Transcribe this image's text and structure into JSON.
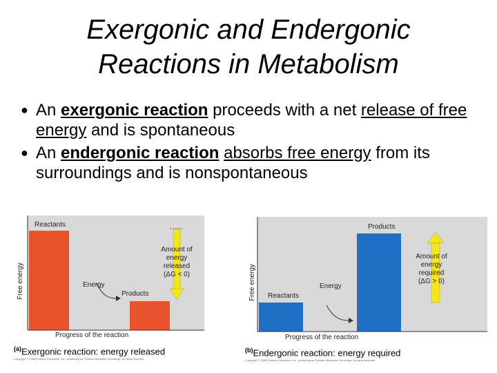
{
  "title": {
    "line1": "Exergonic and Endergonic",
    "line2": "Reactions in Metabolism"
  },
  "bullets": [
    {
      "pre": "An ",
      "term": "exergonic reaction",
      "mid": " proceeds with a net ",
      "rest": "release of free energy",
      "post": " and is spontaneous"
    },
    {
      "pre": "An ",
      "term": "endergonic reaction",
      "mid": " ",
      "rest": "absorbs free energy",
      "post": " from its surroundings and is nonspontaneous"
    }
  ],
  "panel_a": {
    "y_axis": "Free energy",
    "x_axis": "Progress of the reaction",
    "reactants": "Reactants",
    "products": "Products",
    "energy": "Energy",
    "amount_l1": "Amount of",
    "amount_l2": "energy",
    "amount_l3": "released",
    "amount_l4": "(ΔG < 0)",
    "caption_tag": "(a)",
    "caption": "Exergonic reaction: energy released",
    "copyright": "Copyright © 2008 Pearson Education, Inc., publishing as Pearson Benjamin Cummings. All rights reserved."
  },
  "panel_b": {
    "y_axis": "Free energy",
    "x_axis": "Progress of the reaction",
    "reactants": "Reactants",
    "products": "Products",
    "energy": "Energy",
    "amount_l1": "Amount of",
    "amount_l2": "energy",
    "amount_l3": "required",
    "amount_l4": "(ΔG > 0)",
    "caption_tag": "(b)",
    "caption": "Endergonic reaction: energy required",
    "copyright": "Copyright © 2008 Pearson Education, Inc., publishing as Pearson Benjamin Cummings. All rights reserved."
  },
  "colors": {
    "exergonic_bar": "#e8522c",
    "endergonic_bar": "#1f6fc4",
    "arrow": "#f5e614",
    "plot_bg": "#d9d9d9"
  }
}
